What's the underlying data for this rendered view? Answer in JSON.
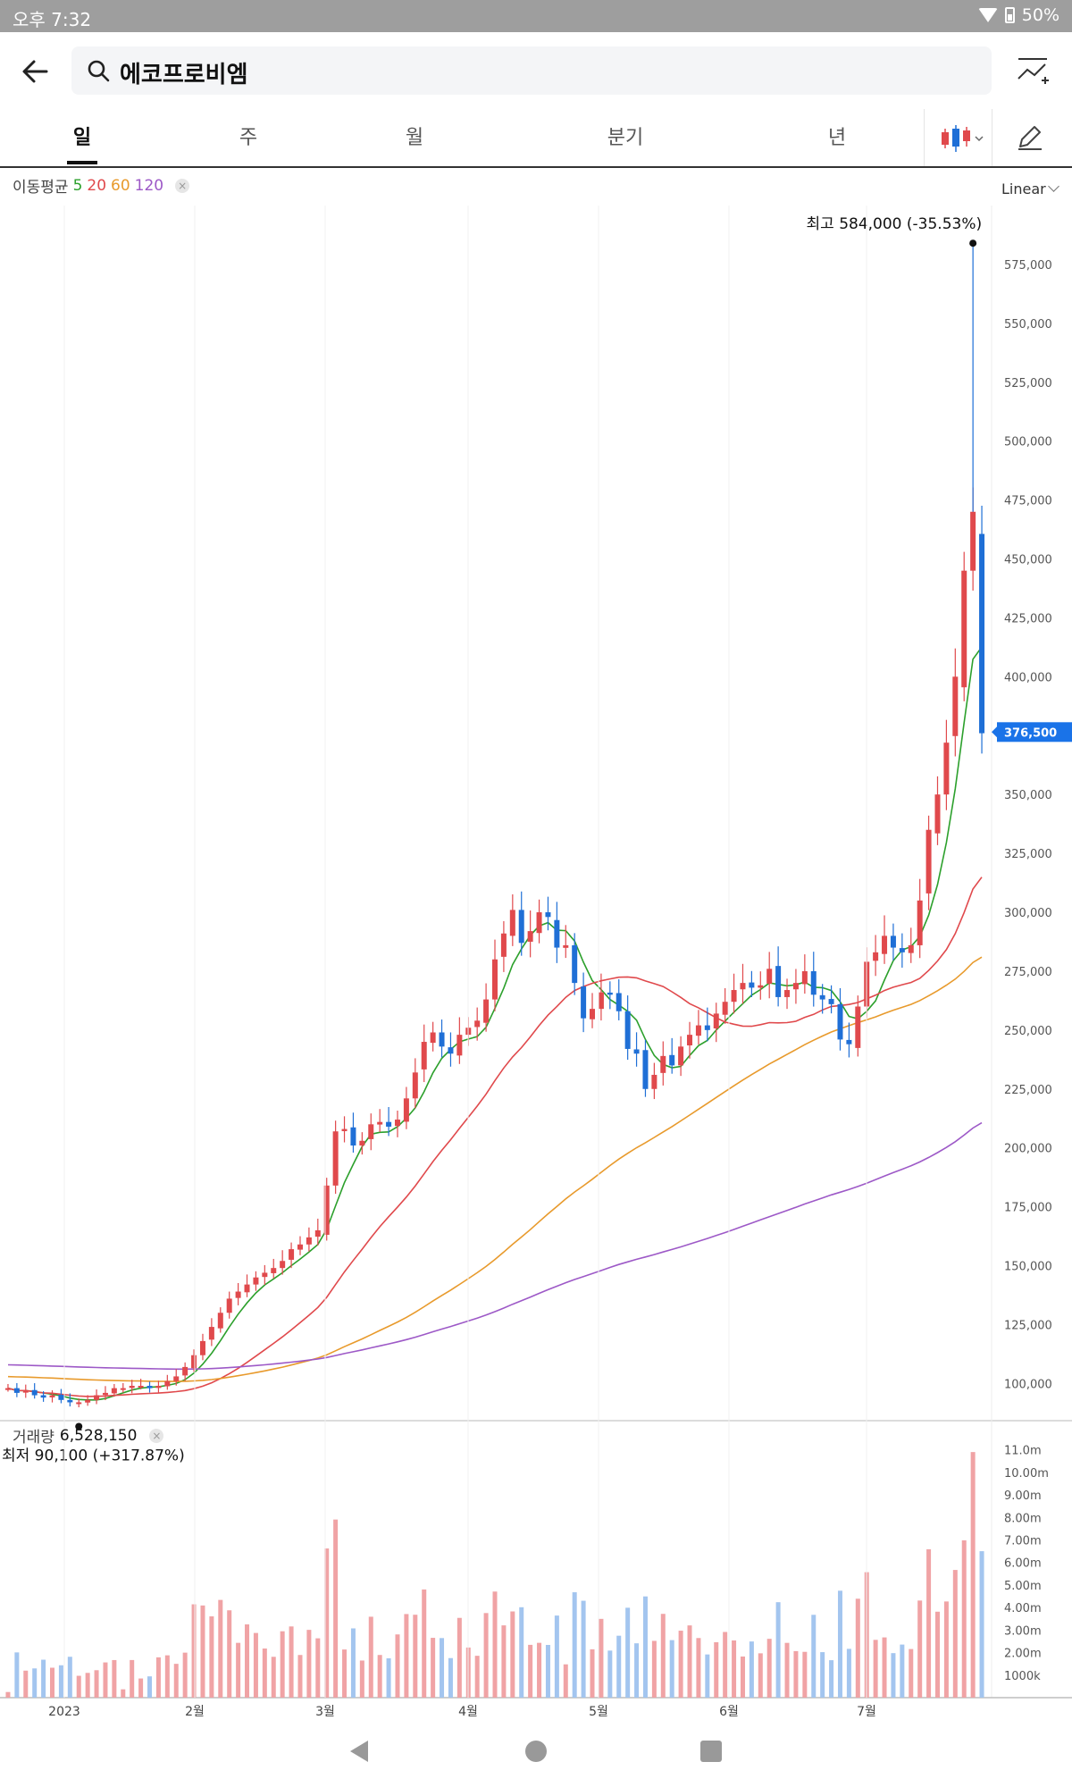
{
  "status_bar": {
    "time": "오후 7:32",
    "battery": "50%"
  },
  "header": {
    "search_query": "에코프로비엠"
  },
  "period_tabs": [
    {
      "label": "일",
      "active": true
    },
    {
      "label": "주",
      "active": false
    },
    {
      "label": "월",
      "active": false
    },
    {
      "label": "분기",
      "active": false
    },
    {
      "label": "년",
      "active": false
    }
  ],
  "ma_legend": {
    "label": "이동평균",
    "periods": [
      {
        "label": "5",
        "color": "#2ca02c"
      },
      {
        "label": "20",
        "color": "#e0494c"
      },
      {
        "label": "60",
        "color": "#e89a2c"
      },
      {
        "label": "120",
        "color": "#9d59c7"
      }
    ]
  },
  "scale_mode": "Linear",
  "price_markers": {
    "high": {
      "prefix": "최고",
      "value": "584,000",
      "change": "(-35.53%)"
    },
    "low": {
      "prefix": "최저",
      "value": "90,100",
      "change": "(+317.87%)"
    },
    "current": "376,500"
  },
  "volume_legend": {
    "label": "거래량",
    "value": "6,528,150"
  },
  "colors": {
    "up": "#e0494c",
    "down": "#1f6fd6",
    "up_volume": "#f0a3a5",
    "down_volume": "#a3c5ef",
    "current_tag": "#1a73e8"
  },
  "chart_data": {
    "type": "candlestick",
    "x_ticks": [
      "2023",
      "2월",
      "3월",
      "4월",
      "5월",
      "6월",
      "7월"
    ],
    "y_ticks": [
      "100,000",
      "125,000",
      "150,000",
      "175,000",
      "200,000",
      "225,000",
      "250,000",
      "275,000",
      "300,000",
      "325,000",
      "350,000",
      "375,000",
      "400,000",
      "425,000",
      "450,000",
      "475,000",
      "500,000",
      "525,000",
      "550,000",
      "575,000"
    ],
    "ylim": [
      88000,
      600000
    ],
    "volume_ticks": [
      "1000k",
      "2.00m",
      "3.00m",
      "4.00m",
      "5.00m",
      "6.00m",
      "7.00m",
      "8.00m",
      "9.00m",
      "10.00m",
      "11.0m"
    ],
    "series_close": [
      98,
      96,
      97,
      95,
      94,
      95,
      93,
      92,
      92,
      93,
      95,
      96,
      98,
      98,
      99,
      99,
      98,
      99,
      101,
      103,
      107,
      112,
      118,
      124,
      130,
      136,
      139,
      142,
      145,
      147,
      149,
      152,
      157,
      159,
      162,
      165,
      184,
      207,
      208,
      201,
      203,
      210,
      211,
      209,
      212,
      221,
      232,
      245,
      249,
      243,
      240,
      248,
      251,
      254,
      263,
      280,
      291,
      301,
      287,
      292,
      300,
      298,
      285,
      286,
      270,
      255,
      259,
      266,
      265,
      258,
      242,
      240,
      225,
      231,
      239,
      235,
      243,
      248,
      252,
      250,
      257,
      262,
      267,
      270,
      268,
      269,
      276,
      264,
      267,
      270,
      275,
      265,
      263,
      261,
      246,
      244,
      260,
      279,
      283,
      290,
      285,
      283,
      286,
      305,
      335,
      350,
      372,
      400,
      445,
      470,
      376
    ]
  }
}
